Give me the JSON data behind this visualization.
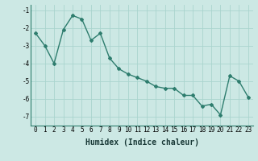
{
  "x": [
    0,
    1,
    2,
    3,
    4,
    5,
    6,
    7,
    8,
    9,
    10,
    11,
    12,
    13,
    14,
    15,
    16,
    17,
    18,
    19,
    20,
    21,
    22,
    23
  ],
  "y": [
    -2.3,
    -3.0,
    -4.0,
    -2.1,
    -1.3,
    -1.5,
    -2.7,
    -2.3,
    -3.7,
    -4.3,
    -4.6,
    -4.8,
    -5.0,
    -5.3,
    -5.4,
    -5.4,
    -5.8,
    -5.8,
    -6.4,
    -6.3,
    -6.9,
    -4.7,
    -5.0,
    -5.9
  ],
  "line_color": "#2e7d6e",
  "marker": "D",
  "marker_size": 2,
  "linewidth": 1.0,
  "bg_color": "#cce8e4",
  "grid_color": "#aad4ce",
  "xlabel": "Humidex (Indice chaleur)",
  "ylim": [
    -7.5,
    -0.7
  ],
  "xlim": [
    -0.5,
    23.5
  ],
  "yticks": [
    -7,
    -6,
    -5,
    -4,
    -3,
    -2,
    -1
  ],
  "xticks": [
    0,
    1,
    2,
    3,
    4,
    5,
    6,
    7,
    8,
    9,
    10,
    11,
    12,
    13,
    14,
    15,
    16,
    17,
    18,
    19,
    20,
    21,
    22,
    23
  ],
  "tick_fontsize": 5.5,
  "xlabel_fontsize": 7.0
}
